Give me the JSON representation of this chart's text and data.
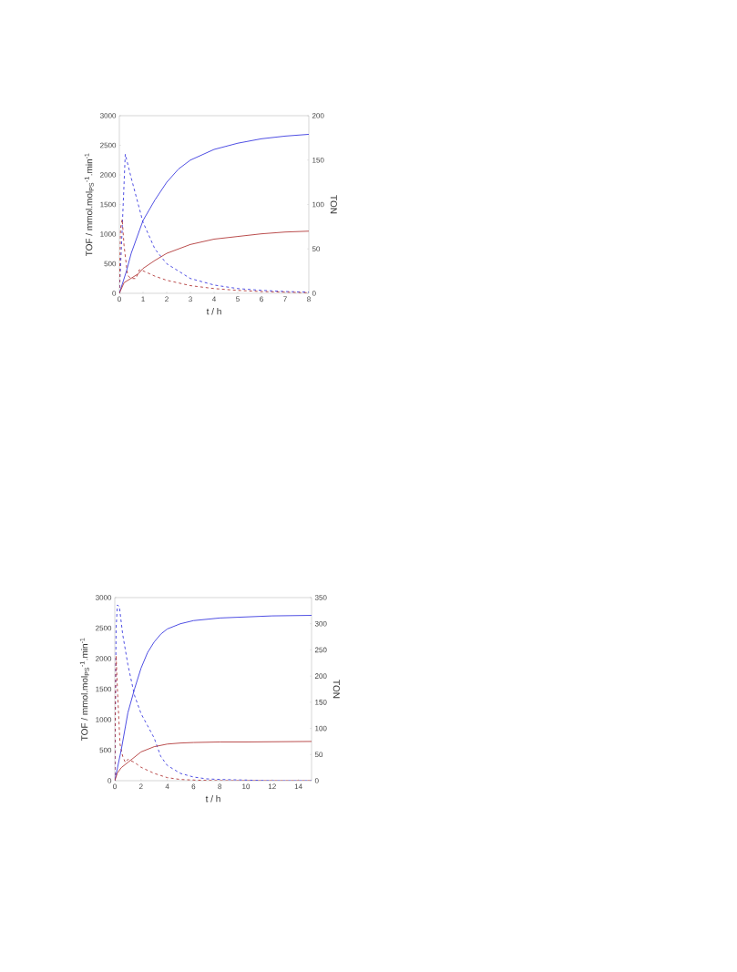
{
  "chart_data": [
    {
      "type": "line",
      "xlabel": "t / h",
      "ylabel": "TOF / mmol.mol$_{PS}$$^{-1}$.min$^{-1}$",
      "y2label": "TON",
      "xlim": [
        0,
        8
      ],
      "ylim": [
        0,
        3000
      ],
      "y2lim": [
        0,
        200
      ],
      "xticks": [
        0,
        1,
        2,
        3,
        4,
        5,
        6,
        7,
        8
      ],
      "yticks": [
        0,
        500,
        1000,
        1500,
        2000,
        2500,
        3000
      ],
      "y2ticks": [
        0,
        50,
        100,
        150,
        200
      ],
      "grid": false,
      "series": [
        {
          "color": "#3b3be0",
          "line_style": "dashed",
          "x": [
            0,
            0.1,
            0.25,
            0.5,
            1,
            1.5,
            2,
            3,
            4,
            5,
            6,
            7,
            8
          ],
          "values": [
            0,
            900,
            2350,
            1950,
            1200,
            750,
            500,
            250,
            140,
            80,
            50,
            30,
            20
          ]
        },
        {
          "color": "#b23a3a",
          "line_style": "dashed",
          "x": [
            0,
            0.05,
            0.12,
            0.2,
            0.35,
            0.5,
            0.7,
            0.85,
            1,
            1.5,
            2,
            3,
            4,
            5,
            6,
            7,
            8
          ],
          "values": [
            0,
            1100,
            1250,
            800,
            300,
            250,
            250,
            400,
            380,
            290,
            220,
            130,
            80,
            50,
            30,
            20,
            10
          ]
        },
        {
          "color": "#3b3be0",
          "line_style": "solid",
          "axis": "y2",
          "x": [
            0,
            0.3,
            0.5,
            1,
            1.5,
            2,
            2.5,
            3,
            4,
            5,
            6,
            7,
            8
          ],
          "values": [
            0,
            25,
            45,
            82,
            105,
            125,
            140,
            150,
            162,
            169,
            174,
            177,
            179
          ]
        },
        {
          "color": "#b23a3a",
          "line_style": "solid",
          "axis": "y2",
          "x": [
            0,
            0.2,
            0.5,
            0.8,
            1,
            1.5,
            2,
            3,
            4,
            5,
            6,
            7,
            8
          ],
          "values": [
            0,
            12,
            17,
            22,
            28,
            37,
            45,
            55,
            61,
            64,
            67,
            69,
            70
          ]
        }
      ]
    },
    {
      "type": "line",
      "xlabel": "t / h",
      "ylabel": "TOF / mmol.mol$_{PS}$$^{-1}$.min$^{-1}$",
      "y2label": "TON",
      "xlim": [
        0,
        15
      ],
      "ylim": [
        0,
        3000
      ],
      "y2lim": [
        0,
        350
      ],
      "xticks": [
        0,
        2,
        4,
        6,
        8,
        10,
        12,
        14
      ],
      "yticks": [
        0,
        500,
        1000,
        1500,
        2000,
        2500,
        3000
      ],
      "y2ticks": [
        0,
        50,
        100,
        150,
        200,
        250,
        300,
        350
      ],
      "grid": false,
      "series": [
        {
          "color": "#3b3be0",
          "line_style": "dashed",
          "x": [
            0,
            0.1,
            0.2,
            0.35,
            0.6,
            1,
            1.5,
            2,
            2.5,
            3,
            3.5,
            4,
            5,
            6,
            7,
            8,
            10,
            12,
            15
          ],
          "values": [
            0,
            2500,
            2880,
            2850,
            2400,
            1900,
            1400,
            1100,
            900,
            700,
            400,
            250,
            120,
            60,
            30,
            20,
            10,
            0,
            0
          ]
        },
        {
          "color": "#b23a3a",
          "line_style": "dashed",
          "x": [
            0,
            0.05,
            0.1,
            0.2,
            0.4,
            0.6,
            0.8,
            1,
            1.5,
            2,
            3,
            4,
            5,
            6,
            8,
            15
          ],
          "values": [
            0,
            1500,
            2050,
            1500,
            600,
            400,
            300,
            350,
            300,
            220,
            120,
            50,
            20,
            10,
            0,
            0
          ]
        },
        {
          "color": "#3b3be0",
          "line_style": "solid",
          "axis": "y2",
          "x": [
            0,
            0.5,
            1,
            1.5,
            2,
            2.5,
            3,
            3.5,
            4,
            5,
            6,
            8,
            10,
            12,
            15
          ],
          "values": [
            0,
            60,
            130,
            175,
            215,
            245,
            265,
            280,
            290,
            300,
            306,
            311,
            313,
            315,
            316
          ]
        },
        {
          "color": "#b23a3a",
          "line_style": "solid",
          "axis": "y2",
          "x": [
            0,
            0.2,
            0.5,
            1,
            1.5,
            2,
            3,
            4,
            5,
            6,
            8,
            10,
            15
          ],
          "values": [
            0,
            15,
            25,
            35,
            45,
            55,
            65,
            70,
            72,
            73,
            74,
            74,
            75
          ]
        }
      ]
    }
  ]
}
